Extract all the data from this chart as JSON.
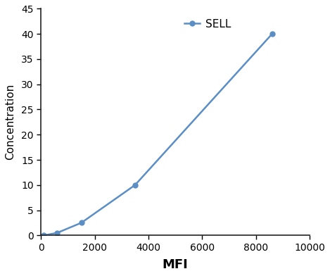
{
  "x": [
    100,
    600,
    1500,
    3500,
    8600
  ],
  "y": [
    0,
    0.5,
    2.5,
    10,
    40
  ],
  "line_color": "#5b8ec4",
  "marker": "o",
  "marker_size": 5,
  "legend_label": "SELL",
  "xlabel": "MFI",
  "ylabel": "Concentration",
  "xlim": [
    0,
    10000
  ],
  "ylim": [
    0,
    45
  ],
  "xticks": [
    0,
    2000,
    4000,
    6000,
    8000,
    10000
  ],
  "yticks": [
    0,
    5,
    10,
    15,
    20,
    25,
    30,
    35,
    40,
    45
  ],
  "xlabel_fontsize": 13,
  "ylabel_fontsize": 11,
  "tick_fontsize": 10,
  "legend_fontsize": 11,
  "figure_width": 4.69,
  "figure_height": 3.92,
  "dpi": 100
}
